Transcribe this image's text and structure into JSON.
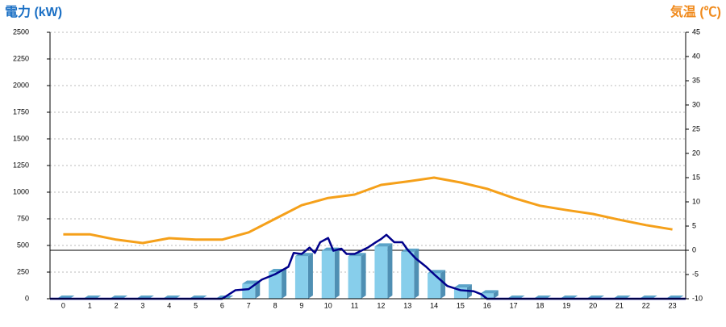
{
  "chart_data": {
    "type": "bar",
    "y_title": "電力 (kW)",
    "y2_title": "気温 (℃)",
    "categories": [
      "0",
      "1",
      "2",
      "3",
      "4",
      "5",
      "6",
      "7",
      "8",
      "9",
      "10",
      "11",
      "12",
      "13",
      "14",
      "15",
      "16",
      "17",
      "18",
      "19",
      "20",
      "21",
      "22",
      "23"
    ],
    "ylim": [
      0,
      2500
    ],
    "yticks": [
      0,
      250,
      500,
      750,
      1000,
      1250,
      1500,
      1750,
      2000,
      2250,
      2500
    ],
    "y2lim": [
      -10,
      45
    ],
    "y2ticks": [
      -10,
      -5,
      0,
      5,
      10,
      15,
      20,
      25,
      30,
      35,
      40,
      45
    ],
    "grid": true,
    "series": [
      {
        "type": "bar",
        "color": "#87ceeb",
        "values": [
          0,
          0,
          0,
          0,
          0,
          0,
          0,
          140,
          250,
          400,
          450,
          400,
          490,
          440,
          240,
          105,
          50,
          0,
          0,
          0,
          0,
          0,
          0,
          0
        ]
      },
      {
        "type": "line",
        "color": "#00008b",
        "x": [
          -0.5,
          6,
          6.5,
          7,
          7.5,
          8,
          8.5,
          8.7,
          9,
          9.3,
          9.5,
          9.7,
          10,
          10.2,
          10.5,
          10.7,
          11,
          11.5,
          11.8,
          12,
          12.2,
          12.5,
          12.8,
          13,
          13.3,
          13.7,
          14,
          14.5,
          15,
          15.5,
          15.8,
          16,
          23.5
        ],
        "values": [
          0,
          0,
          80,
          90,
          180,
          230,
          300,
          430,
          420,
          480,
          430,
          530,
          570,
          450,
          470,
          420,
          420,
          480,
          530,
          560,
          600,
          530,
          530,
          460,
          380,
          300,
          230,
          120,
          80,
          70,
          40,
          0,
          0
        ]
      },
      {
        "type": "line",
        "axis": "y2",
        "color": "#f5a01a",
        "values": [
          3.3,
          3.3,
          2.2,
          1.5,
          2.5,
          2.2,
          2.2,
          3.7,
          6.5,
          9.3,
          10.8,
          11.5,
          13.5,
          14.2,
          15,
          14,
          12.7,
          10.8,
          9.2,
          8.3,
          7.5,
          6.3,
          5.2,
          4.3
        ]
      }
    ]
  }
}
